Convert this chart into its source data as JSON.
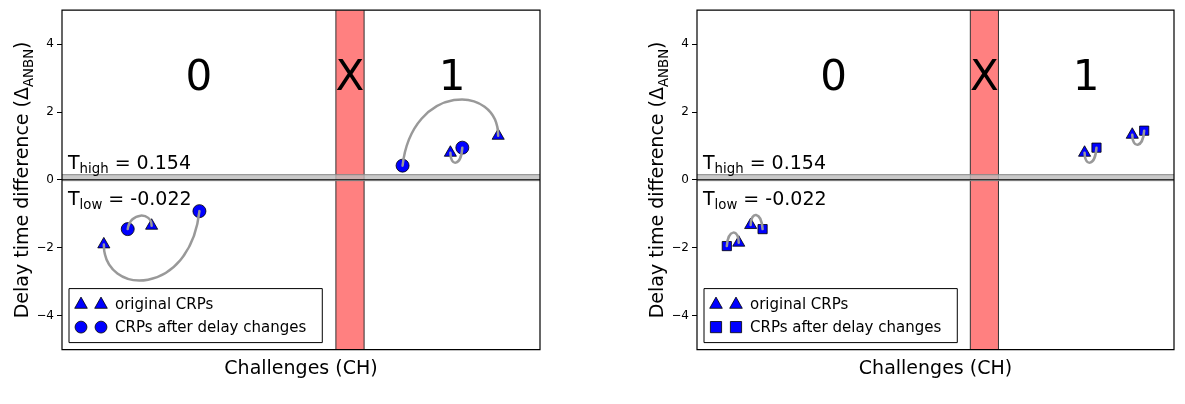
{
  "chart_data": [
    {
      "type": "scatter",
      "xlabel": "Challenges (CH)",
      "ylabel": "Delay time difference (Δ$_{ANBN}$)",
      "categories": [
        null,
        null,
        null,
        null,
        null,
        null,
        null,
        null,
        null,
        null,
        null,
        null,
        null,
        null,
        null,
        null,
        null,
        null,
        null,
        null,
        null,
        null,
        null,
        null,
        null,
        null,
        null,
        null,
        null,
        null,
        null,
        null,
        null,
        null,
        null,
        null,
        null,
        null,
        null,
        null
      ],
      "ylim": [
        -5,
        5
      ],
      "yticks": [
        -4,
        -2,
        0,
        2,
        4
      ],
      "grid": false,
      "legend": "bottom left",
      "annotations": [
        "0",
        "X",
        "1"
      ],
      "bands": [
        {
          "axis": "y",
          "from": -0.022,
          "to": 0.154,
          "color": "#bbbbbb"
        }
      ],
      "ref_lines": [
        {
          "axis": "y",
          "value": 0,
          "color": "#000000"
        },
        {
          "axis": "y",
          "value": 0.154,
          "label": "T$_{high}$ = 0.154",
          "color": "#888888"
        },
        {
          "axis": "y",
          "value": -0.022,
          "label": "T$_{low}$ = -0.022",
          "color": "#888888"
        }
      ],
      "series": [
        {
          "name": "original CRPs",
          "color": "#0000ff",
          "marker": "triangle",
          "values": [
            null,
            null,
            null,
            -1.9,
            null,
            null,
            null,
            -1.35,
            null,
            null,
            null,
            null,
            null,
            null,
            null,
            null,
            null,
            null,
            null,
            null,
            null,
            null,
            null,
            null,
            null,
            null,
            null,
            null,
            null,
            null,
            null,
            null,
            0.8,
            null,
            null,
            null,
            1.3,
            null,
            null,
            null
          ]
        },
        {
          "name": "CRPs after delay changes",
          "color": "#0000ff",
          "marker": "circle",
          "values": [
            null,
            null,
            null,
            null,
            null,
            -1.45,
            null,
            null,
            null,
            null,
            null,
            -0.92,
            null,
            null,
            null,
            null,
            null,
            null,
            null,
            null,
            null,
            null,
            null,
            null,
            null,
            null,
            null,
            null,
            0.42,
            null,
            null,
            null,
            null,
            0.95,
            null,
            null,
            null,
            null,
            null,
            null
          ]
        }
      ]
    },
    {
      "type": "scatter",
      "xlabel": "Challenges (CH)",
      "ylabel": "Delay time difference (Δ$_{ANBN}$)",
      "categories": [
        null,
        null,
        null,
        null,
        null,
        null,
        null,
        null,
        null,
        null,
        null,
        null,
        null,
        null,
        null,
        null,
        null,
        null,
        null,
        null,
        null,
        null,
        null,
        null,
        null,
        null,
        null,
        null,
        null,
        null,
        null,
        null,
        null,
        null,
        null,
        null,
        null,
        null,
        null,
        null
      ],
      "ylim": [
        -5,
        5
      ],
      "yticks": [
        -4,
        -2,
        0,
        2,
        4
      ],
      "grid": false,
      "legend": "bottom left",
      "annotations": [
        "0",
        "X",
        "1"
      ],
      "bands": [
        {
          "axis": "y",
          "from": -0.022,
          "to": 0.154,
          "color": "#bbbbbb"
        }
      ],
      "ref_lines": [
        {
          "axis": "y",
          "value": 0,
          "color": "#000000"
        },
        {
          "axis": "y",
          "value": 0.154,
          "label": "T$_{high}$ = 0.154",
          "color": "#888888"
        },
        {
          "axis": "y",
          "value": -0.022,
          "label": "T$_{low}$ = -0.022",
          "color": "#888888"
        }
      ],
      "series": [
        {
          "name": "original CRPs",
          "color": "#0000ff",
          "marker": "triangle",
          "values": [
            null,
            null,
            null,
            -1.85,
            -1.33,
            null,
            null,
            null,
            null,
            null,
            null,
            null,
            null,
            null,
            null,
            null,
            null,
            null,
            null,
            null,
            null,
            null,
            null,
            null,
            null,
            null,
            null,
            null,
            null,
            null,
            null,
            null,
            0.8,
            null,
            null,
            null,
            1.33,
            null,
            null,
            null
          ]
        },
        {
          "name": "CRPs after delay changes",
          "color": "#0000ff",
          "marker": "square",
          "values": [
            null,
            null,
            -1.95,
            null,
            null,
            -1.45,
            null,
            null,
            null,
            null,
            null,
            null,
            null,
            null,
            null,
            null,
            null,
            null,
            null,
            null,
            null,
            null,
            null,
            null,
            null,
            null,
            null,
            null,
            null,
            null,
            null,
            null,
            null,
            0.95,
            null,
            null,
            null,
            1.45,
            null,
            null
          ]
        }
      ]
    }
  ]
}
